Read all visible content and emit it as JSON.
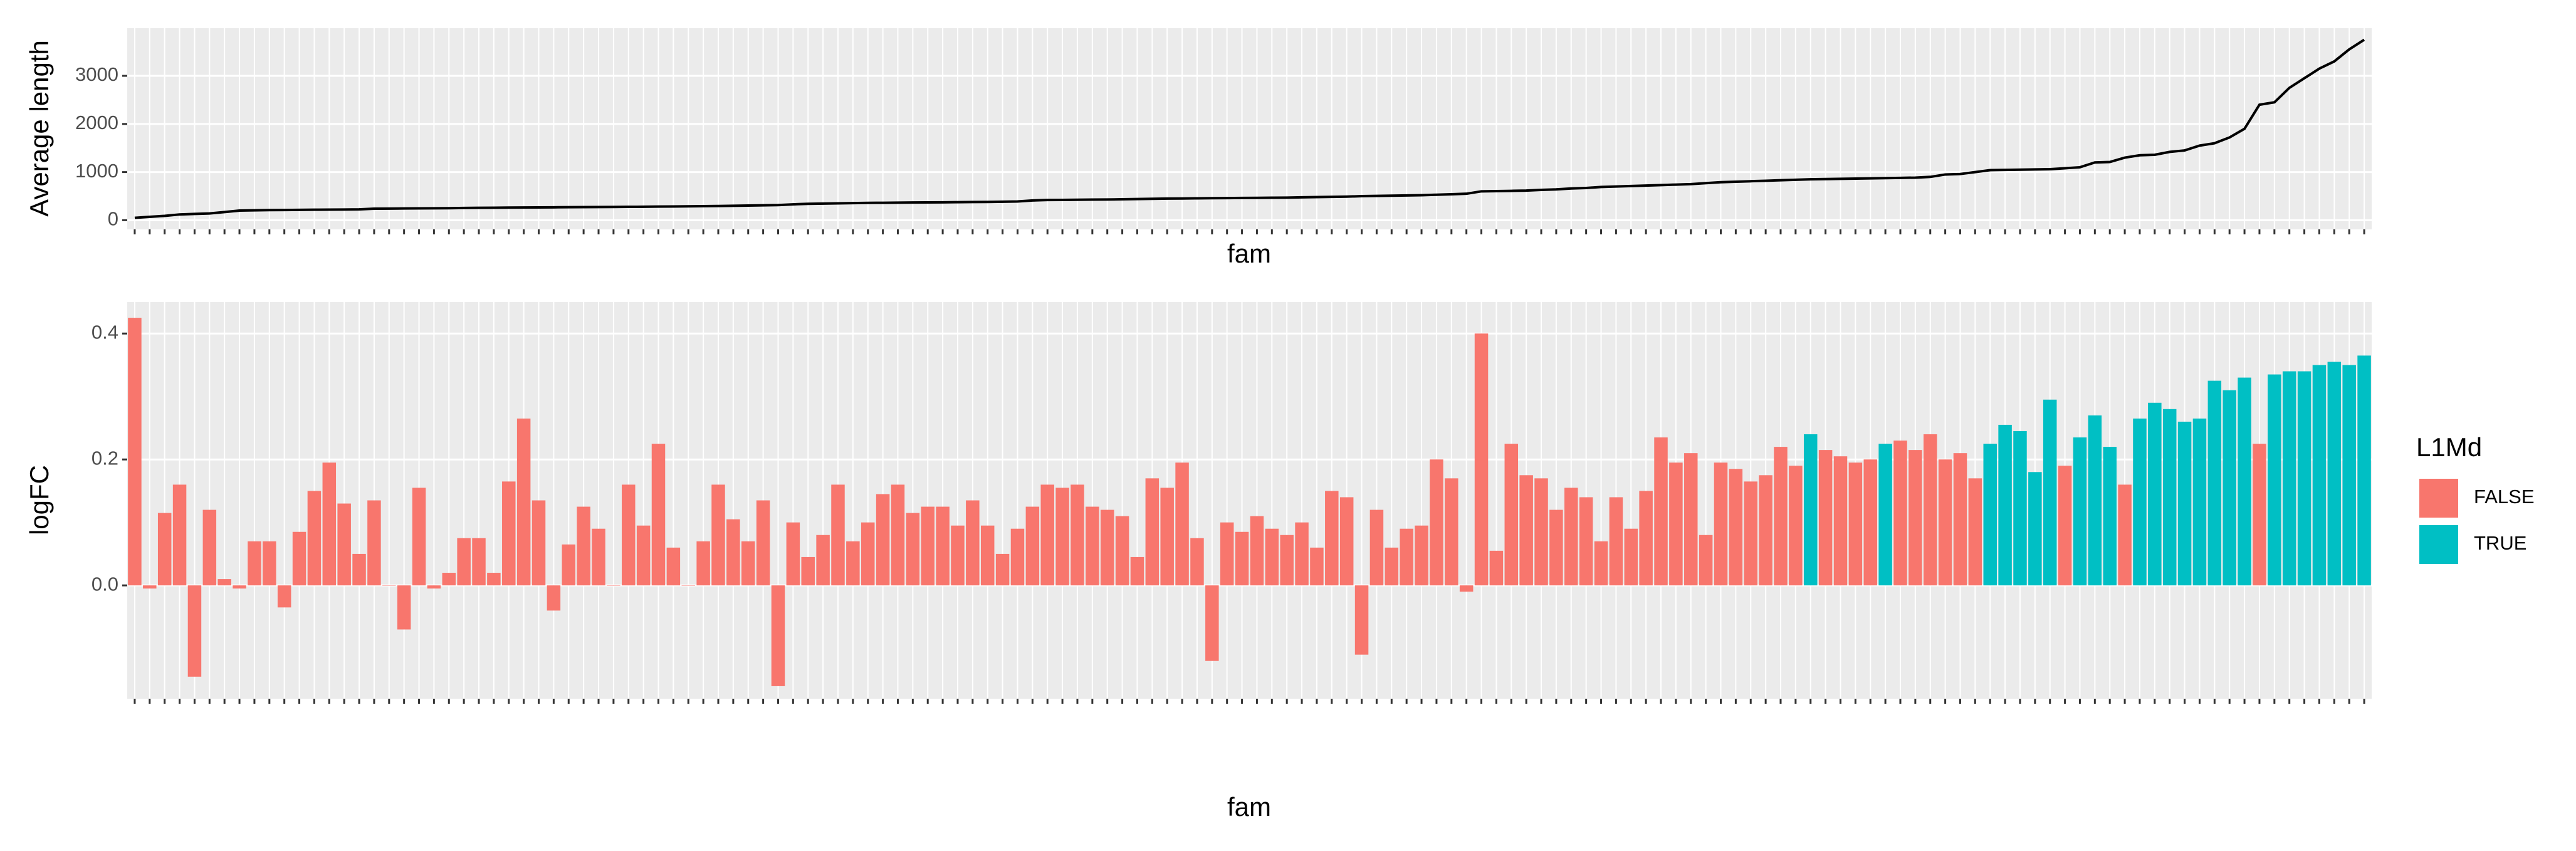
{
  "chart_data": [
    {
      "type": "line",
      "xlabel": "fam",
      "ylabel": "Average length",
      "color": "#000000",
      "values": [
        50,
        70,
        90,
        120,
        130,
        140,
        170,
        200,
        205,
        210,
        212,
        215,
        218,
        220,
        222,
        225,
        240,
        242,
        244,
        246,
        248,
        250,
        255,
        258,
        260,
        262,
        264,
        266,
        268,
        270,
        272,
        274,
        276,
        278,
        280,
        283,
        286,
        289,
        292,
        295,
        300,
        305,
        310,
        315,
        330,
        340,
        345,
        350,
        355,
        360,
        362,
        365,
        368,
        370,
        372,
        375,
        378,
        380,
        385,
        390,
        410,
        420,
        422,
        425,
        428,
        430,
        435,
        440,
        445,
        450,
        452,
        455,
        458,
        460,
        462,
        465,
        468,
        470,
        475,
        480,
        485,
        490,
        500,
        505,
        510,
        515,
        520,
        530,
        540,
        550,
        600,
        605,
        610,
        615,
        630,
        640,
        660,
        670,
        690,
        700,
        710,
        720,
        730,
        740,
        750,
        770,
        790,
        800,
        810,
        820,
        830,
        840,
        850,
        855,
        860,
        865,
        870,
        875,
        880,
        885,
        900,
        950,
        960,
        1000,
        1040,
        1045,
        1050,
        1055,
        1060,
        1080,
        1100,
        1200,
        1210,
        1300,
        1350,
        1360,
        1420,
        1450,
        1550,
        1600,
        1720,
        1900,
        2400,
        2450,
        2750,
        2950,
        3150,
        3300,
        3550,
        3750
      ],
      "ylim": [
        -190,
        3990
      ],
      "yticks": [
        0,
        1000,
        2000,
        3000
      ],
      "grid": true
    },
    {
      "type": "bar",
      "xlabel": "fam",
      "ylabel": "logFC",
      "legend_title": "L1Md",
      "legend": "right",
      "grid": true,
      "categories": [
        null,
        null,
        null,
        null,
        null,
        null,
        null,
        null,
        null,
        null,
        null,
        null,
        null,
        null,
        null,
        null,
        null,
        null,
        null,
        null,
        null,
        null,
        null,
        null,
        null,
        null,
        null,
        null,
        null,
        null,
        null,
        null,
        null,
        null,
        null,
        null,
        null,
        null,
        null,
        null,
        null,
        null,
        null,
        null,
        null,
        null,
        null,
        null,
        null,
        null,
        null,
        null,
        null,
        null,
        null,
        null,
        null,
        null,
        null,
        null,
        null,
        null,
        null,
        null,
        null,
        null,
        null,
        null,
        null,
        null,
        null,
        null,
        null,
        null,
        null,
        null,
        null,
        null,
        null,
        null,
        null,
        null,
        null,
        null,
        null,
        null,
        null,
        null,
        null,
        null,
        null,
        null,
        null,
        null,
        null,
        null,
        null,
        null,
        null,
        null,
        null,
        null,
        null,
        null,
        null,
        null,
        null,
        null,
        null,
        null,
        null,
        null,
        null,
        null,
        null,
        null,
        null,
        null,
        null,
        null,
        null,
        null,
        null,
        null,
        null,
        null,
        null,
        null,
        null,
        null,
        null,
        null,
        null,
        null,
        null,
        null,
        null,
        null,
        null,
        null,
        null,
        null,
        null,
        null,
        null,
        null,
        null,
        null,
        null,
        null
      ],
      "series": [
        {
          "name": "FALSE",
          "color": "#F8766D",
          "values": [
            0.425,
            -0.005,
            0.115,
            0.16,
            -0.145,
            0.12,
            0.01,
            -0.005,
            0.07,
            0.07,
            -0.035,
            0.085,
            0.15,
            0.195,
            0.13,
            0.05,
            0.135,
            0.0,
            -0.07,
            0.155,
            -0.005,
            0.02,
            0.075,
            0.075,
            0.02,
            0.165,
            0.265,
            0.135,
            -0.04,
            0.065,
            0.125,
            0.09,
            0.0,
            0.16,
            0.095,
            0.225,
            0.06,
            0.0,
            0.07,
            0.16,
            0.105,
            0.07,
            0.135,
            -0.16,
            0.1,
            0.045,
            0.08,
            0.16,
            0.07,
            0.1,
            0.145,
            0.16,
            0.115,
            0.125,
            0.125,
            0.095,
            0.135,
            0.095,
            0.05,
            0.09,
            0.125,
            0.16,
            0.155,
            0.16,
            0.125,
            0.12,
            0.11,
            0.045,
            0.17,
            0.155,
            0.195,
            0.075,
            -0.12,
            0.1,
            0.085,
            0.11,
            0.09,
            0.08,
            0.1,
            0.06,
            0.15,
            0.14,
            -0.11,
            0.12,
            0.06,
            0.09,
            0.095,
            0.2,
            0.17,
            -0.01,
            0.4,
            0.055,
            0.225,
            0.175,
            0.17,
            0.12,
            0.155,
            0.14,
            0.07,
            0.14,
            0.09,
            0.15,
            0.235,
            0.195,
            0.21,
            0.08,
            0.195,
            0.185,
            0.165,
            0.175,
            0.22,
            0.19,
            null,
            0.215,
            0.205,
            0.195,
            0.2,
            null,
            0.23,
            0.215,
            0.24,
            0.2,
            0.21,
            0.17,
            null,
            null,
            null,
            null,
            null,
            0.19,
            null,
            null,
            null,
            0.16,
            null,
            null,
            null,
            null,
            null,
            null,
            null,
            null,
            0.225,
            null,
            null,
            null,
            null,
            null,
            null,
            null
          ]
        },
        {
          "name": "TRUE",
          "color": "#00BFC4",
          "values": [
            null,
            null,
            null,
            null,
            null,
            null,
            null,
            null,
            null,
            null,
            null,
            null,
            null,
            null,
            null,
            null,
            null,
            null,
            null,
            null,
            null,
            null,
            null,
            null,
            null,
            null,
            null,
            null,
            null,
            null,
            null,
            null,
            null,
            null,
            null,
            null,
            null,
            null,
            null,
            null,
            null,
            null,
            null,
            null,
            null,
            null,
            null,
            null,
            null,
            null,
            null,
            null,
            null,
            null,
            null,
            null,
            null,
            null,
            null,
            null,
            null,
            null,
            null,
            null,
            null,
            null,
            null,
            null,
            null,
            null,
            null,
            null,
            null,
            null,
            null,
            null,
            null,
            null,
            null,
            null,
            null,
            null,
            null,
            null,
            null,
            null,
            null,
            null,
            null,
            null,
            null,
            null,
            null,
            null,
            null,
            null,
            null,
            null,
            null,
            null,
            null,
            null,
            null,
            null,
            null,
            null,
            null,
            null,
            null,
            null,
            null,
            null,
            0.24,
            null,
            null,
            null,
            null,
            0.225,
            null,
            null,
            null,
            null,
            null,
            null,
            0.225,
            0.255,
            0.245,
            0.18,
            0.295,
            null,
            0.235,
            0.27,
            0.22,
            null,
            0.265,
            0.29,
            0.28,
            0.26,
            0.265,
            0.325,
            0.31,
            0.33,
            null,
            0.335,
            0.34,
            0.34,
            0.35,
            0.355,
            0.35,
            0.365
          ]
        }
      ],
      "ylim": [
        -0.18,
        0.45
      ],
      "yticks": [
        {
          "value": 0,
          "label": "0.0"
        },
        0.2,
        0.4
      ]
    }
  ]
}
